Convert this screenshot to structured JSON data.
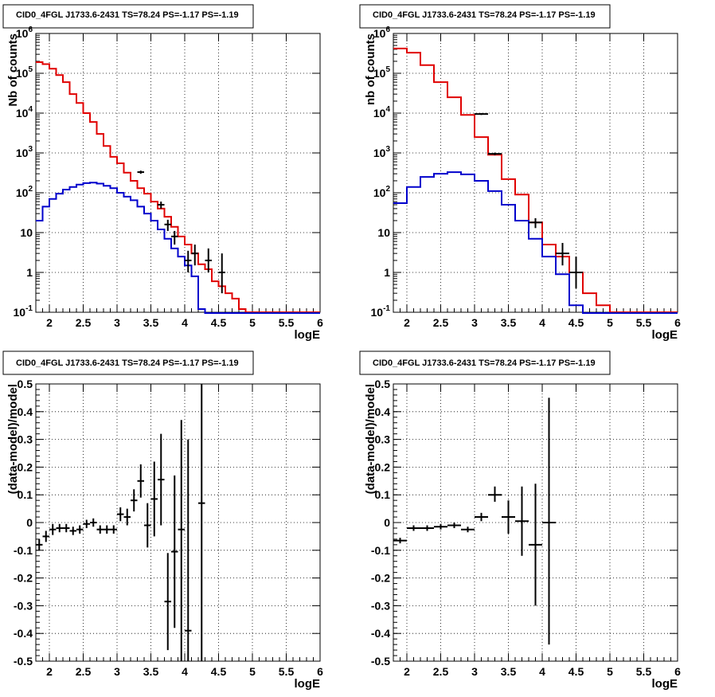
{
  "colors": {
    "data": "#000000",
    "total_model": "#e00000",
    "source_model": "#0000cc",
    "grid": "#000000",
    "background": "#ffffff"
  },
  "chart_data": [
    {
      "id": "spectrum-fine",
      "type": "line",
      "title": "CID0_4FGL J1733.6-2431 TS=78.24 PS=-1.17 PS=-1.19",
      "xlabel": "logE",
      "ylabel": "Nb of counts",
      "xlim": [
        1.8,
        6.0
      ],
      "ylim": [
        0.1,
        1000000
      ],
      "yscale": "log",
      "grid": true,
      "x_ticks": [
        "2",
        "2.5",
        "3",
        "3.5",
        "4",
        "4.5",
        "5",
        "5.5",
        "6"
      ],
      "y_ticks": [
        "10^-1",
        "1",
        "10",
        "10^2",
        "10^3",
        "10^4",
        "10^5",
        "10^6"
      ],
      "bin_edges": [
        1.8,
        1.9,
        2.0,
        2.1,
        2.2,
        2.3,
        2.4,
        2.5,
        2.6,
        2.7,
        2.8,
        2.9,
        3.0,
        3.1,
        3.2,
        3.3,
        3.4,
        3.5,
        3.6,
        3.7,
        3.8,
        3.9,
        4.0,
        4.1,
        4.2,
        4.3,
        4.4,
        4.5,
        4.6,
        4.7,
        4.8,
        4.9,
        5.0,
        5.1,
        5.2,
        5.3,
        5.4,
        5.5,
        5.6,
        5.7,
        5.8,
        5.9,
        6.0
      ],
      "series": [
        {
          "key": "total",
          "color": "#e00000",
          "style": "step",
          "values": [
            190000,
            170000,
            130000,
            90000,
            60000,
            30000,
            18000,
            10000,
            6000,
            3000,
            1500,
            800,
            550,
            320,
            200,
            130,
            95,
            60,
            40,
            25,
            14,
            8,
            5,
            3,
            1.6,
            1.2,
            0.6,
            0.45,
            0.3,
            0.22,
            0.12,
            0.1,
            0.1,
            0.1,
            0.1,
            0.1,
            0.1,
            0.1,
            0.1,
            0.1,
            0.1,
            0.1
          ]
        },
        {
          "key": "source",
          "color": "#0000cc",
          "style": "step",
          "values": [
            20,
            45,
            70,
            95,
            120,
            140,
            160,
            175,
            180,
            170,
            150,
            130,
            100,
            80,
            65,
            45,
            30,
            20,
            12,
            7,
            4,
            2.5,
            1.5,
            0.8,
            0.12,
            0.05,
            0.05,
            0.05,
            0.05,
            0.05,
            0.05,
            0.05,
            0.05,
            0.05,
            0.05,
            0.05,
            0.05,
            0.05,
            0.05,
            0.05,
            0.05,
            0.05
          ]
        },
        {
          "key": "data",
          "color": "#000000",
          "style": "errorbars",
          "points": [
            {
              "x": 3.35,
              "y": 330,
              "lo": 300,
              "hi": 360
            },
            {
              "x": 3.65,
              "y": 50,
              "lo": 40,
              "hi": 60
            },
            {
              "x": 3.75,
              "y": 16,
              "lo": 11,
              "hi": 21
            },
            {
              "x": 3.85,
              "y": 8,
              "lo": 5,
              "hi": 11
            },
            {
              "x": 4.05,
              "y": 2,
              "lo": 1,
              "hi": 3.5
            },
            {
              "x": 4.15,
              "y": 3,
              "lo": 1.5,
              "hi": 5
            },
            {
              "x": 4.35,
              "y": 2,
              "lo": 1,
              "hi": 4
            },
            {
              "x": 4.55,
              "y": 1,
              "lo": 0.3,
              "hi": 3
            }
          ]
        }
      ]
    },
    {
      "id": "spectrum-coarse",
      "type": "line",
      "title": "CID0_4FGL J1733.6-2431 TS=78.24 PS=-1.17 PS=-1.19",
      "xlabel": "logE",
      "ylabel": "nb of counts",
      "xlim": [
        1.8,
        6.0
      ],
      "ylim": [
        0.1,
        1000000
      ],
      "yscale": "log",
      "grid": true,
      "x_ticks": [
        "2",
        "2.5",
        "3",
        "3.5",
        "4",
        "4.5",
        "5",
        "5.5",
        "6"
      ],
      "y_ticks": [
        "10^-1",
        "1",
        "10",
        "10^2",
        "10^3",
        "10^4",
        "10^5",
        "10^6"
      ],
      "bin_edges": [
        1.8,
        2.0,
        2.2,
        2.4,
        2.6,
        2.8,
        3.0,
        3.2,
        3.4,
        3.6,
        3.8,
        4.0,
        4.2,
        4.4,
        4.6,
        4.8,
        5.0,
        5.2,
        5.4,
        5.6,
        5.8,
        6.0
      ],
      "series": [
        {
          "key": "total",
          "color": "#e00000",
          "style": "step",
          "values": [
            420000,
            330000,
            160000,
            60000,
            25000,
            9000,
            2500,
            900,
            220,
            90,
            18,
            5,
            2.5,
            1,
            0.3,
            0.15,
            0.1,
            0.1,
            0.1,
            0.1,
            0.1
          ]
        },
        {
          "key": "source",
          "color": "#0000cc",
          "style": "step",
          "values": [
            55,
            140,
            250,
            300,
            330,
            290,
            200,
            110,
            50,
            20,
            7,
            2.5,
            0.9,
            0.15,
            0.05,
            0.05,
            0.05,
            0.05,
            0.05,
            0.05,
            0.05
          ]
        },
        {
          "key": "data",
          "color": "#000000",
          "style": "errorbars",
          "points": [
            {
              "x": 3.1,
              "y": 9500,
              "lo": 9000,
              "hi": 10000
            },
            {
              "x": 3.3,
              "y": 950,
              "lo": 880,
              "hi": 1020
            },
            {
              "x": 3.9,
              "y": 18,
              "lo": 13,
              "hi": 23
            },
            {
              "x": 4.3,
              "y": 3,
              "lo": 1.5,
              "hi": 5.5
            },
            {
              "x": 4.5,
              "y": 1,
              "lo": 0.4,
              "hi": 2.5
            }
          ]
        }
      ]
    },
    {
      "id": "residuals-fine",
      "type": "scatter",
      "title": "CID0_4FGL J1733.6-2431 TS=78.24 PS=-1.17 PS=-1.19",
      "xlabel": "logE",
      "ylabel": "(data-model)/model",
      "xlim": [
        1.8,
        6.0
      ],
      "ylim": [
        -0.5,
        0.5
      ],
      "yscale": "linear",
      "grid": true,
      "x_ticks": [
        "2",
        "2.5",
        "3",
        "3.5",
        "4",
        "4.5",
        "5",
        "5.5",
        "6"
      ],
      "y_ticks": [
        "-0.5",
        "-0.4",
        "-0.3",
        "-0.2",
        "-0.1",
        "0",
        "0.1",
        "0.2",
        "0.3",
        "0.4",
        "0.5"
      ],
      "half_width": 0.05,
      "series": [
        {
          "key": "residuals",
          "color": "#000000",
          "style": "errorbars",
          "points": [
            {
              "x": 1.85,
              "y": -0.08,
              "lo": -0.1,
              "hi": -0.06
            },
            {
              "x": 1.95,
              "y": -0.05,
              "lo": -0.07,
              "hi": -0.03
            },
            {
              "x": 2.05,
              "y": -0.025,
              "lo": -0.045,
              "hi": -0.005
            },
            {
              "x": 2.15,
              "y": -0.02,
              "lo": -0.035,
              "hi": -0.005
            },
            {
              "x": 2.25,
              "y": -0.02,
              "lo": -0.035,
              "hi": -0.005
            },
            {
              "x": 2.35,
              "y": -0.03,
              "lo": -0.045,
              "hi": -0.015
            },
            {
              "x": 2.45,
              "y": -0.025,
              "lo": -0.04,
              "hi": -0.01
            },
            {
              "x": 2.55,
              "y": -0.005,
              "lo": -0.02,
              "hi": 0.01
            },
            {
              "x": 2.65,
              "y": 0.0,
              "lo": -0.015,
              "hi": 0.015
            },
            {
              "x": 2.75,
              "y": -0.025,
              "lo": -0.04,
              "hi": -0.01
            },
            {
              "x": 2.85,
              "y": -0.025,
              "lo": -0.04,
              "hi": -0.01
            },
            {
              "x": 2.95,
              "y": -0.025,
              "lo": -0.04,
              "hi": -0.01
            },
            {
              "x": 3.05,
              "y": 0.03,
              "lo": 0.005,
              "hi": 0.055
            },
            {
              "x": 3.15,
              "y": 0.02,
              "lo": -0.01,
              "hi": 0.05
            },
            {
              "x": 3.25,
              "y": 0.08,
              "lo": 0.04,
              "hi": 0.12
            },
            {
              "x": 3.35,
              "y": 0.15,
              "lo": 0.09,
              "hi": 0.21
            },
            {
              "x": 3.45,
              "y": -0.01,
              "lo": -0.09,
              "hi": 0.07
            },
            {
              "x": 3.55,
              "y": 0.085,
              "lo": -0.05,
              "hi": 0.22
            },
            {
              "x": 3.65,
              "y": 0.155,
              "lo": -0.01,
              "hi": 0.32
            },
            {
              "x": 3.75,
              "y": -0.285,
              "lo": -0.46,
              "hi": -0.11
            },
            {
              "x": 3.85,
              "y": -0.105,
              "lo": -0.38,
              "hi": 0.17
            },
            {
              "x": 3.95,
              "y": -0.025,
              "lo": -0.5,
              "hi": 0.37
            },
            {
              "x": 4.05,
              "y": -0.39,
              "lo": -0.5,
              "hi": 0.3
            },
            {
              "x": 4.25,
              "y": 0.07,
              "lo": -0.5,
              "hi": 0.5
            }
          ]
        }
      ]
    },
    {
      "id": "residuals-coarse",
      "type": "scatter",
      "title": "CID0_4FGL J1733.6-2431 TS=78.24 PS=-1.17 PS=-1.19",
      "xlabel": "logE",
      "ylabel": "(data-model)/model",
      "xlim": [
        1.8,
        6.0
      ],
      "ylim": [
        -0.5,
        0.5
      ],
      "yscale": "linear",
      "grid": true,
      "x_ticks": [
        "2",
        "2.5",
        "3",
        "3.5",
        "4",
        "4.5",
        "5",
        "5.5",
        "6"
      ],
      "y_ticks": [
        "-0.5",
        "-0.4",
        "-0.3",
        "-0.2",
        "-0.1",
        "0",
        "0.1",
        "0.2",
        "0.3",
        "0.4",
        "0.5"
      ],
      "half_width": 0.1,
      "series": [
        {
          "key": "residuals",
          "color": "#000000",
          "style": "errorbars",
          "points": [
            {
              "x": 1.9,
              "y": -0.065,
              "lo": -0.075,
              "hi": -0.055
            },
            {
              "x": 2.1,
              "y": -0.02,
              "lo": -0.03,
              "hi": -0.01
            },
            {
              "x": 2.3,
              "y": -0.02,
              "lo": -0.03,
              "hi": -0.01
            },
            {
              "x": 2.5,
              "y": -0.015,
              "lo": -0.025,
              "hi": -0.005
            },
            {
              "x": 2.7,
              "y": -0.01,
              "lo": -0.02,
              "hi": 0.0
            },
            {
              "x": 2.9,
              "y": -0.025,
              "lo": -0.035,
              "hi": -0.015
            },
            {
              "x": 3.1,
              "y": 0.02,
              "lo": 0.005,
              "hi": 0.035
            },
            {
              "x": 3.3,
              "y": 0.1,
              "lo": 0.075,
              "hi": 0.13
            },
            {
              "x": 3.5,
              "y": 0.02,
              "lo": -0.04,
              "hi": 0.08
            },
            {
              "x": 3.7,
              "y": 0.005,
              "lo": -0.12,
              "hi": 0.13
            },
            {
              "x": 3.9,
              "y": -0.08,
              "lo": -0.3,
              "hi": 0.14
            },
            {
              "x": 4.1,
              "y": 0.0,
              "lo": -0.44,
              "hi": 0.45
            }
          ]
        }
      ]
    }
  ]
}
